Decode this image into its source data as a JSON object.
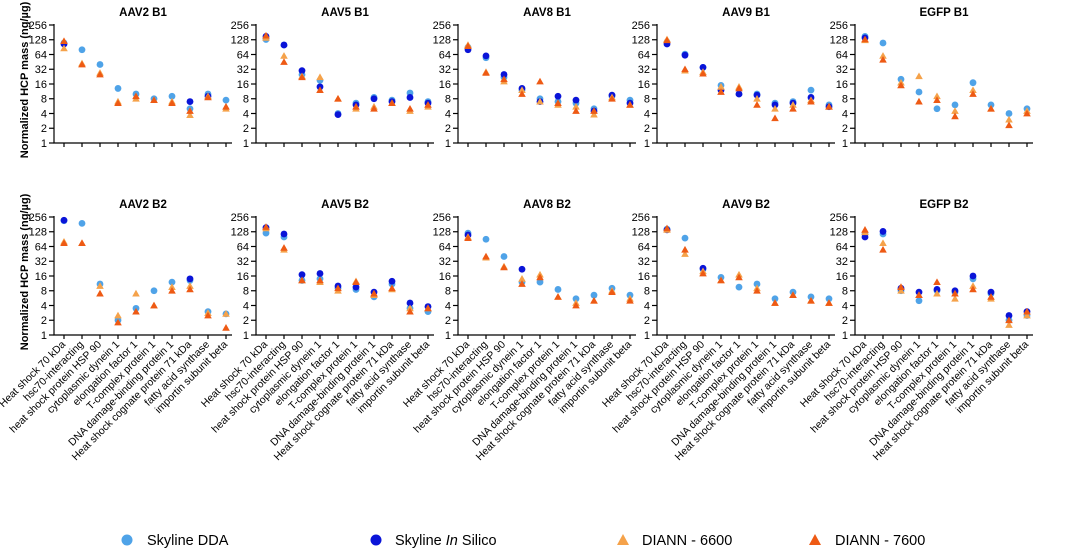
{
  "chart_data": {
    "type": "scatter",
    "y_label": "Normalized HCP mass (ng/µg)",
    "y_scale": "log2",
    "ylim": [
      1,
      256
    ],
    "y_ticks": [
      "1",
      "2",
      "4",
      "8",
      "16",
      "32",
      "64",
      "128",
      "256"
    ],
    "categories": [
      "Heat shock 70 kDa",
      "hsc70-interacting",
      "heat shock protein HSP 90",
      "cytoplasmic dynein 1",
      "elongation factor 1",
      "T-complex protein 1",
      "DNA damage-binding protein 1",
      "Heat shock cognate protein 71 kDa",
      "fatty acid synthase",
      "importin subunit beta"
    ],
    "legend": [
      {
        "name": "Skyline DDA",
        "marker": "circle",
        "color": "#4FA3E8"
      },
      {
        "name": "Skyline ",
        "italic": "In",
        "name_tail": " Silico",
        "marker": "circle",
        "color": "#0A14D8"
      },
      {
        "name": "DIANN - 6600",
        "marker": "triangle",
        "color": "#F5A24A"
      },
      {
        "name": "DIANN - 7600",
        "marker": "triangle",
        "color": "#EE5A14"
      }
    ],
    "series_names": [
      "Skyline DDA",
      "Skyline In Silico",
      "DIANN - 6600",
      "DIANN - 7600"
    ],
    "panels": [
      {
        "title": "AAV2 B1",
        "series": [
          [
            110,
            80,
            40,
            13,
            10,
            8,
            9,
            5,
            10,
            7.5
          ],
          [
            105,
            null,
            null,
            null,
            null,
            null,
            null,
            7,
            9,
            null
          ],
          [
            85,
            42,
            27,
            7,
            8,
            7.5,
            7,
            3.7,
            9,
            5
          ],
          [
            120,
            40,
            25,
            6.5,
            9,
            7.5,
            6.5,
            4.5,
            8.5,
            5.5
          ]
        ]
      },
      {
        "title": "AAV5 B1",
        "series": [
          [
            130,
            100,
            25,
            19,
            4,
            6.5,
            8.5,
            7.5,
            10.5,
            7
          ],
          [
            150,
            100,
            30,
            14,
            3.8,
            6,
            8,
            7,
            8.5,
            6.5
          ],
          [
            140,
            60,
            23,
            22,
            8,
            5,
            5.5,
            6.5,
            4.5,
            5.5
          ],
          [
            155,
            45,
            22,
            12,
            8,
            5.5,
            5,
            6.5,
            5,
            6
          ]
        ]
      },
      {
        "title": "AAV8 B1",
        "series": [
          [
            90,
            55,
            22,
            12,
            8,
            7,
            6.5,
            5,
            9,
            7.5
          ],
          [
            80,
            60,
            25,
            13,
            7,
            9,
            7.5,
            4.5,
            9.5,
            6.5
          ],
          [
            100,
            28,
            18,
            12,
            7,
            6,
            5.5,
            3.8,
            8.5,
            6
          ],
          [
            95,
            27,
            20,
            10,
            18,
            6.5,
            4.5,
            4.5,
            8,
            6
          ]
        ]
      },
      {
        "title": "AAV9 B1",
        "series": [
          [
            115,
            65,
            35,
            15,
            10,
            10,
            6.5,
            7,
            12,
            6
          ],
          [
            105,
            62,
            35,
            12,
            10,
            9.5,
            6,
            6.5,
            8.5,
            5.5
          ],
          [
            130,
            30,
            28,
            14,
            14,
            8,
            5,
            6,
            7.5,
            5.5
          ],
          [
            125,
            32,
            26,
            11,
            13,
            6,
            3.2,
            5,
            7,
            5.5
          ]
        ]
      },
      {
        "title": "EGFP B1",
        "series": [
          [
            150,
            110,
            20,
            11,
            5,
            6,
            17,
            6,
            4,
            5
          ],
          [
            140,
            null,
            null,
            null,
            null,
            null,
            null,
            null,
            null,
            null
          ],
          [
            125,
            60,
            17,
            23,
            9,
            4.5,
            12,
            5,
            3,
            4.5
          ],
          [
            130,
            50,
            15,
            7,
            7.5,
            3.5,
            10,
            5,
            2.3,
            4
          ]
        ]
      },
      {
        "title": "AAV2 B2",
        "series": [
          [
            215,
            190,
            11,
            2,
            3.5,
            8,
            12,
            13,
            3,
            2.7
          ],
          [
            220,
            null,
            null,
            null,
            null,
            null,
            null,
            14,
            null,
            null
          ],
          [
            80,
            75,
            10,
            2.5,
            7,
            4,
            9.5,
            10,
            2.8,
            2.7
          ],
          [
            75,
            75,
            7,
            1.8,
            3,
            4,
            8,
            8.5,
            2.5,
            1.4
          ]
        ]
      },
      {
        "title": "AAV5 B2",
        "series": [
          [
            120,
            100,
            13,
            14,
            9,
            8.5,
            6,
            11,
            3.5,
            3
          ],
          [
            155,
            115,
            17,
            18,
            10,
            9.5,
            7.5,
            12.5,
            4.5,
            3.8
          ],
          [
            150,
            55,
            13,
            12,
            8,
            12.5,
            6.5,
            8.5,
            3.5,
            3.5
          ],
          [
            160,
            60,
            13,
            13,
            9,
            12,
            7,
            9,
            3,
            3.5
          ]
        ]
      },
      {
        "title": "AAV8 B2",
        "series": [
          [
            120,
            90,
            40,
            12,
            12,
            8.5,
            5.5,
            6.5,
            9,
            6.5
          ],
          [
            110,
            null,
            null,
            22,
            null,
            null,
            null,
            null,
            null,
            null
          ],
          [
            100,
            38,
            25,
            14,
            17,
            6,
            4.5,
            5,
            8,
            5.5
          ],
          [
            95,
            40,
            24,
            11,
            15,
            6,
            4,
            5,
            7.5,
            5
          ]
        ]
      },
      {
        "title": "AAV9 B2",
        "series": [
          [
            145,
            95,
            22,
            15,
            9.5,
            11,
            5.5,
            7.5,
            6,
            5.5
          ],
          [
            140,
            null,
            23,
            null,
            null,
            null,
            null,
            null,
            null,
            null
          ],
          [
            140,
            45,
            20,
            13,
            17,
            9,
            4.5,
            6.5,
            5,
            4.5
          ],
          [
            150,
            55,
            18,
            13,
            15,
            8,
            4.5,
            6.5,
            5,
            4.5
          ]
        ]
      },
      {
        "title": "EGFP B2",
        "series": [
          [
            115,
            115,
            8,
            5,
            8,
            7.5,
            14,
            7,
            2,
            2.5
          ],
          [
            100,
            130,
            9,
            7.5,
            8.5,
            8,
            16,
            7.5,
            2.5,
            3
          ],
          [
            125,
            75,
            8,
            6.5,
            7,
            5.5,
            10,
            5.5,
            1.6,
            2.5
          ],
          [
            140,
            55,
            9.5,
            6.5,
            12,
            7,
            8.5,
            6,
            2,
            3
          ]
        ]
      }
    ]
  }
}
